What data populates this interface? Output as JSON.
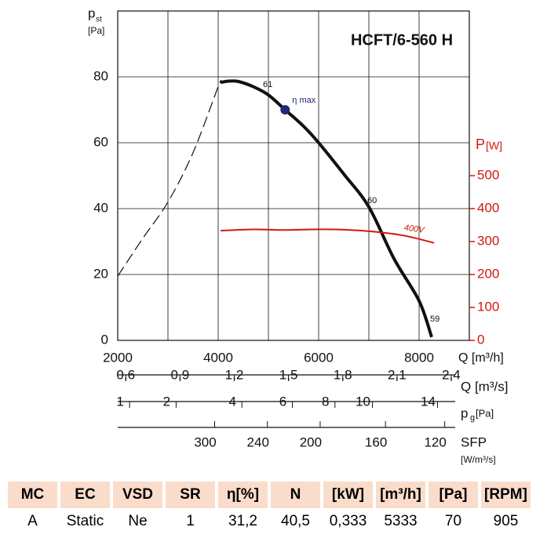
{
  "chart_data": {
    "type": "line",
    "title": "HCFT/6-560 H",
    "y_label": "p",
    "y_label_sub": "st",
    "y_unit": "[Pa]",
    "x_label": "Q [m³/h]",
    "y2_label": "P",
    "y2_unit": "[W]",
    "y2_color": "#d0180f",
    "xlim": [
      2000,
      9000
    ],
    "xticks": [
      2000,
      4000,
      6000,
      8000
    ],
    "xgrid": [
      3000,
      5000,
      7000
    ],
    "ylim": [
      0,
      100
    ],
    "yticks": [
      0,
      20,
      40,
      60,
      80
    ],
    "y2lim": [
      0,
      1000
    ],
    "y2ticks": [
      0,
      100,
      200,
      300,
      400,
      500
    ],
    "grid": true,
    "series": [
      {
        "color": "#111111",
        "style": "solid",
        "x": [
          4050,
          4200,
          4400,
          4700,
          5000,
          5333,
          5700,
          6000,
          6500,
          7000,
          7500,
          8000,
          8250
        ],
        "values": [
          78.3,
          78.7,
          78.6,
          77,
          74.5,
          70,
          65,
          60,
          50.5,
          40.5,
          24.8,
          12,
          1
        ]
      },
      {
        "color": "#111111",
        "style": "dashed",
        "x": [
          2000,
          2500,
          3000,
          3500,
          4000,
          4050
        ],
        "values": [
          19.5,
          31,
          42,
          57,
          77,
          78.3
        ]
      },
      {
        "name": "400V",
        "color": "#d0180f",
        "style": "solid",
        "axis": "y2",
        "x": [
          4050,
          4700,
          5300,
          5900,
          6500,
          7100,
          7700,
          8300
        ],
        "values": [
          333,
          337,
          335,
          337,
          336,
          330,
          318,
          296
        ]
      }
    ],
    "annotations": [
      "61",
      "60",
      "59"
    ],
    "eta_max": {
      "label": "η max",
      "x": 5333,
      "y": 70,
      "color": "#1f2a7a"
    },
    "secondary_axes": [
      {
        "label": "Q [m³/s]",
        "scale": "linear",
        "xlim": [
          0.5556,
          2.5
        ],
        "xticks": [
          {
            "value": 0.6,
            "label": "0,6"
          },
          {
            "value": 0.9,
            "label": "0,9"
          },
          {
            "value": 1.2,
            "label": "1,2"
          },
          {
            "value": 1.5,
            "label": "1,5"
          },
          {
            "value": 1.8,
            "label": "1,8"
          },
          {
            "value": 2.1,
            "label": "2,1"
          },
          {
            "value": 2.4,
            "label": "2,4"
          }
        ]
      },
      {
        "label": "p",
        "label_sub": "g",
        "unit": "[Pa]",
        "scale": "sqrt",
        "xlim": [
          0.8,
          16.2
        ],
        "xticks": [
          1,
          2,
          4,
          6,
          8,
          10,
          14
        ]
      },
      {
        "label": "SFP",
        "unit": "[W/m³/s]",
        "scale": "linear",
        "xlim": [
          2000,
          9000
        ],
        "xticks": [
          {
            "value": 3930,
            "label": "300"
          },
          {
            "value": 4980,
            "label": "240"
          },
          {
            "value": 6030,
            "label": "200"
          },
          {
            "value": 7330,
            "label": "160"
          },
          {
            "value": 8510,
            "label": "120"
          }
        ]
      }
    ]
  },
  "table": {
    "header": [
      "MC",
      "EC",
      "VSD",
      "SR",
      "η[%]",
      "N",
      "[kW]",
      "[m³/h]",
      "[Pa]",
      "[RPM]"
    ],
    "rows": [
      [
        "A",
        "Static",
        "Ne",
        "1",
        "31,2",
        "40,5",
        "0,333",
        "5333",
        "70",
        "905"
      ]
    ]
  }
}
